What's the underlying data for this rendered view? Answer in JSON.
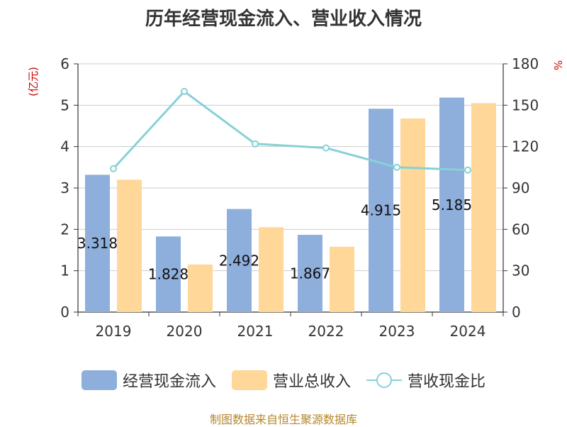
{
  "chart_data": {
    "type": "bar",
    "title": "历年经营现金流入、营业收入情况",
    "categories": [
      "2019",
      "2020",
      "2021",
      "2022",
      "2023",
      "2024"
    ],
    "series": [
      {
        "name": "经营现金流入",
        "type": "bar",
        "axis": "left",
        "color": "#8eaedc",
        "values": [
          3.318,
          1.828,
          2.492,
          1.867,
          4.915,
          5.185
        ],
        "data_labels": [
          "3.318",
          "1.828",
          "2.492",
          "1.867",
          "4.915",
          "5.185"
        ]
      },
      {
        "name": "营业总收入",
        "type": "bar",
        "axis": "left",
        "color": "#ffd799",
        "values": [
          3.2,
          1.15,
          2.05,
          1.58,
          4.68,
          5.05
        ]
      },
      {
        "name": "营收现金比",
        "type": "line",
        "axis": "right",
        "color": "#86d1d7",
        "values": [
          104,
          160,
          122,
          119,
          105,
          103
        ]
      }
    ],
    "y_left": {
      "label": "(亿元)",
      "min": 0,
      "max": 6,
      "ticks": [
        {
          "value": 0,
          "label": "0"
        },
        {
          "value": 1,
          "label": "1"
        },
        {
          "value": 2,
          "label": "2"
        },
        {
          "value": 3,
          "label": "3"
        },
        {
          "value": 4,
          "label": "4"
        },
        {
          "value": 5,
          "label": "5"
        },
        {
          "value": 6,
          "label": "6"
        }
      ]
    },
    "y_right": {
      "label": "%",
      "min": 0,
      "max": 180,
      "ticks": [
        {
          "value": 0,
          "label": "0"
        },
        {
          "value": 30,
          "label": "30"
        },
        {
          "value": 60,
          "label": "60"
        },
        {
          "value": 90,
          "label": "90"
        },
        {
          "value": 120,
          "label": "120"
        },
        {
          "value": 150,
          "label": "150"
        },
        {
          "value": 180,
          "label": "180"
        }
      ]
    },
    "grid": true,
    "legend_position": "bottom"
  },
  "source": "制图数据来自恒生聚源数据库"
}
